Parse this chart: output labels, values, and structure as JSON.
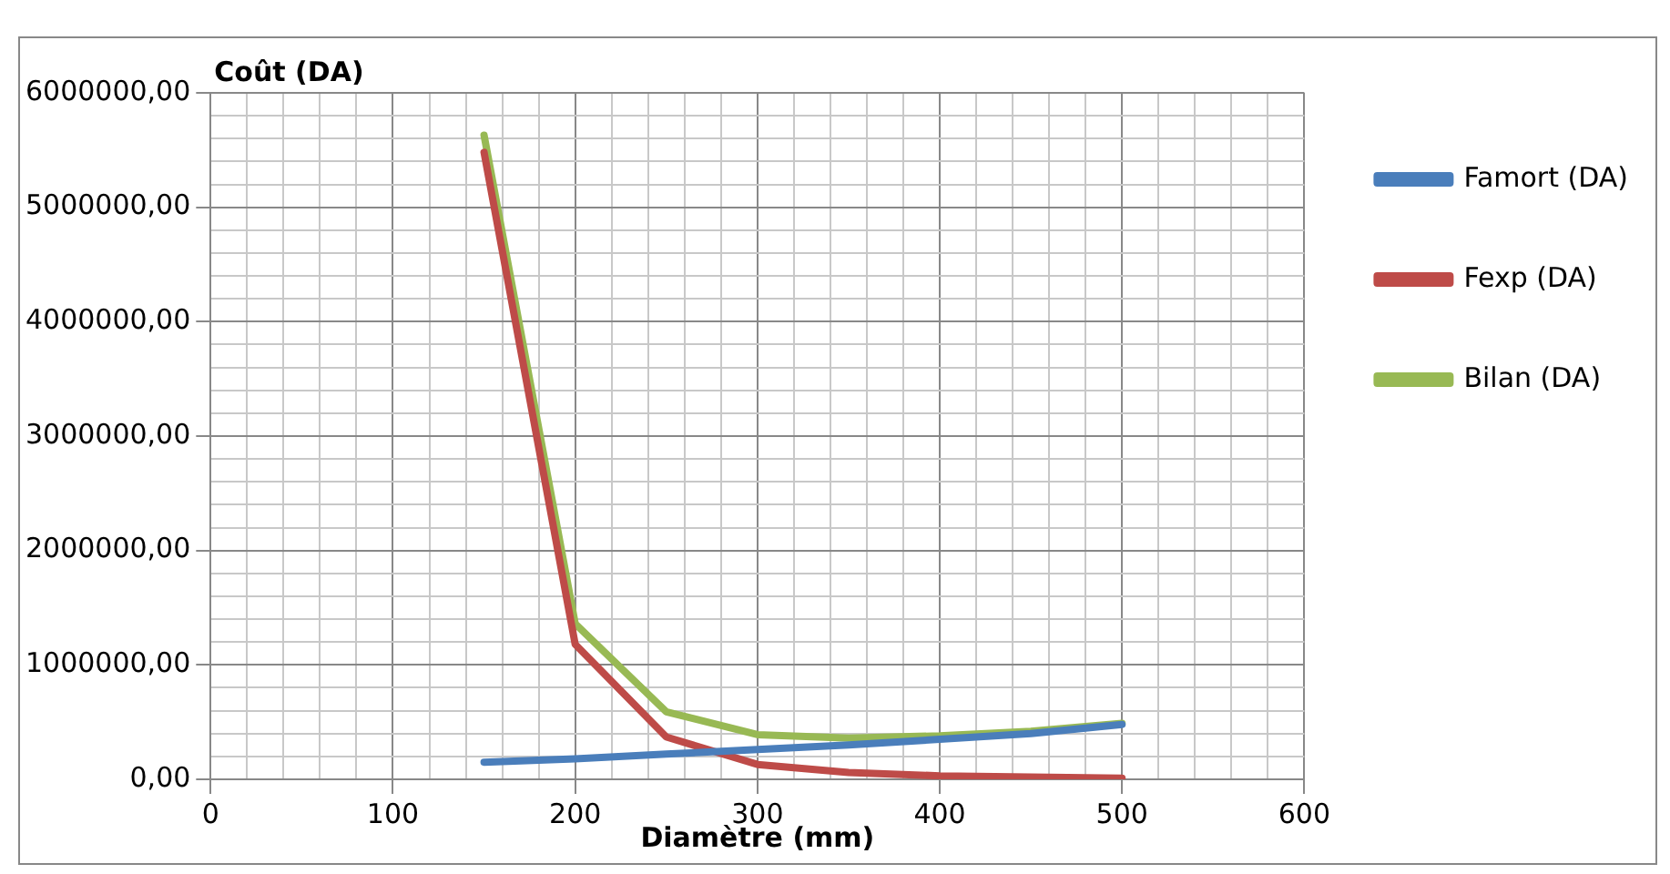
{
  "chart_data": {
    "type": "line",
    "xlabel": "Diamètre (mm)",
    "ylabel": "Coût (DA)",
    "x": [
      150,
      200,
      250,
      300,
      350,
      400,
      450,
      500
    ],
    "series": [
      {
        "name": "Famort (DA)",
        "color": "#4a7ebb",
        "values": [
          150000,
          180000,
          220000,
          260000,
          300000,
          350000,
          400000,
          480000
        ]
      },
      {
        "name": "Fexp (DA)",
        "color": "#be4b48",
        "values": [
          5480000,
          1180000,
          370000,
          130000,
          60000,
          30000,
          20000,
          10000
        ]
      },
      {
        "name": "Bilan (DA)",
        "color": "#98b954",
        "values": [
          5630000,
          1360000,
          590000,
          390000,
          360000,
          380000,
          420000,
          490000
        ]
      }
    ],
    "xlim": [
      0,
      600
    ],
    "xticks": [
      0,
      {
        "value": 20,
        "label": null
      },
      {
        "value": 40,
        "label": null
      },
      {
        "value": 60,
        "label": null
      },
      {
        "value": 80,
        "label": null
      },
      100,
      {
        "value": 120,
        "label": null
      },
      {
        "value": 140,
        "label": null
      },
      {
        "value": 160,
        "label": null
      },
      {
        "value": 180,
        "label": null
      },
      200,
      {
        "value": 220,
        "label": null
      },
      {
        "value": 240,
        "label": null
      },
      {
        "value": 260,
        "label": null
      },
      {
        "value": 280,
        "label": null
      },
      300,
      {
        "value": 320,
        "label": null
      },
      {
        "value": 340,
        "label": null
      },
      {
        "value": 360,
        "label": null
      },
      {
        "value": 380,
        "label": null
      },
      400,
      {
        "value": 420,
        "label": null
      },
      {
        "value": 440,
        "label": null
      },
      {
        "value": 460,
        "label": null
      },
      {
        "value": 480,
        "label": null
      },
      500,
      {
        "value": 520,
        "label": null
      },
      {
        "value": 540,
        "label": null
      },
      {
        "value": 560,
        "label": null
      },
      {
        "value": 580,
        "label": null
      },
      600
    ],
    "ylim": [
      0,
      6000000
    ],
    "yticks": [
      {
        "value": 0,
        "label": "0,00"
      },
      {
        "value": 200000,
        "label": null
      },
      {
        "value": 400000,
        "label": null
      },
      {
        "value": 600000,
        "label": null
      },
      {
        "value": 800000,
        "label": null
      },
      {
        "value": 1000000,
        "label": "1000000,00"
      },
      {
        "value": 1200000,
        "label": null
      },
      {
        "value": 1400000,
        "label": null
      },
      {
        "value": 1600000,
        "label": null
      },
      {
        "value": 1800000,
        "label": null
      },
      {
        "value": 2000000,
        "label": "2000000,00"
      },
      {
        "value": 2200000,
        "label": null
      },
      {
        "value": 2400000,
        "label": null
      },
      {
        "value": 2600000,
        "label": null
      },
      {
        "value": 2800000,
        "label": null
      },
      {
        "value": 3000000,
        "label": "3000000,00"
      },
      {
        "value": 3200000,
        "label": null
      },
      {
        "value": 3400000,
        "label": null
      },
      {
        "value": 3600000,
        "label": null
      },
      {
        "value": 3800000,
        "label": null
      },
      {
        "value": 4000000,
        "label": "4000000,00"
      },
      {
        "value": 4200000,
        "label": null
      },
      {
        "value": 4400000,
        "label": null
      },
      {
        "value": 4600000,
        "label": null
      },
      {
        "value": 4800000,
        "label": null
      },
      {
        "value": 5000000,
        "label": "5000000,00"
      },
      {
        "value": 5200000,
        "label": null
      },
      {
        "value": 5400000,
        "label": null
      },
      {
        "value": 5600000,
        "label": null
      },
      {
        "value": 5800000,
        "label": null
      },
      {
        "value": 6000000,
        "label": "6000000,00"
      }
    ],
    "grid": true,
    "legend": "right",
    "marker": "none",
    "line_style": "solid"
  }
}
